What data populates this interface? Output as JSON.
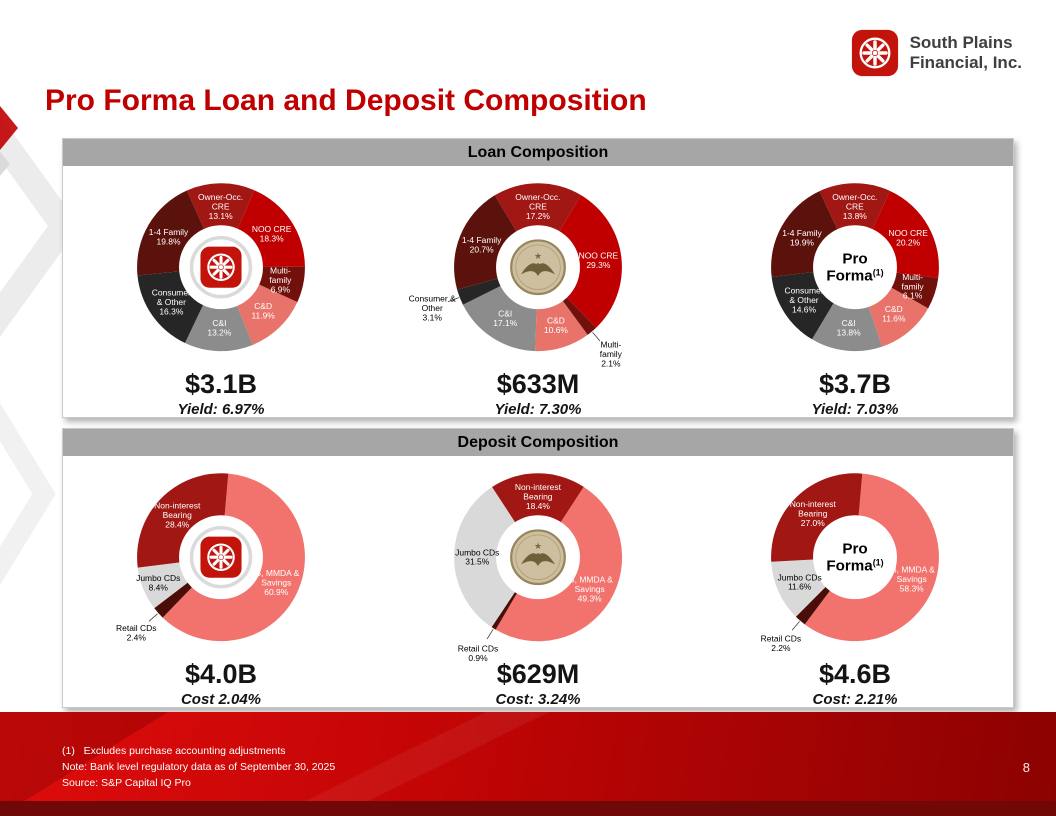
{
  "brand": {
    "name_line1": "South Plains",
    "name_line2": "Financial, Inc.",
    "accent_red": "#C00000",
    "logo_red": "#C3140C"
  },
  "title": "Pro Forma Loan and Deposit Composition",
  "sections": [
    {
      "header": "Loan Composition"
    },
    {
      "header": "Deposit Composition"
    }
  ],
  "footer": {
    "footnote": "(1)   Excludes purchase accounting adjustments",
    "note": "Note: Bank level regulatory data as of September 30, 2025",
    "source": "Source: S&P Capital IQ Pro",
    "page_number": "8"
  },
  "chart_data": [
    {
      "id": "loan-south-plains",
      "type": "pie",
      "section": "Loan Composition",
      "center": {
        "kind": "spfi-logo"
      },
      "total": "$3.1B",
      "metric": "Yield: 6.97%",
      "start_deg": -24,
      "segments": [
        {
          "name": "Owner-Occ. CRE",
          "value": 13.1,
          "color": "#A01713",
          "text": "#ffffff",
          "lines": [
            "Owner-Occ.",
            "CRE",
            "13.1%"
          ],
          "placement": "in"
        },
        {
          "name": "NOO CRE",
          "value": 18.3,
          "color": "#C00000",
          "text": "#ffffff",
          "lines": [
            "NOO CRE",
            "18.3%"
          ],
          "placement": "in"
        },
        {
          "name": "Multi-family",
          "value": 6.9,
          "color": "#72110C",
          "text": "#ffffff",
          "lines": [
            "Multi-",
            "family",
            "6.9%"
          ],
          "placement": "in"
        },
        {
          "name": "C&D",
          "value": 11.9,
          "color": "#E8736B",
          "text": "#ffffff",
          "lines": [
            "C&D",
            "11.9%"
          ],
          "placement": "in"
        },
        {
          "name": "C&I",
          "value": 13.2,
          "color": "#8C8C8C",
          "text": "#ffffff",
          "lines": [
            "C&I",
            "13.2%"
          ],
          "placement": "in"
        },
        {
          "name": "Consumer & Other",
          "value": 16.3,
          "color": "#262626",
          "text": "#ffffff",
          "lines": [
            "Consumer",
            "& Other",
            "16.3%"
          ],
          "placement": "in"
        },
        {
          "name": "1-4 Family",
          "value": 19.8,
          "color": "#5C120C",
          "text": "#ffffff",
          "lines": [
            "1-4 Family",
            "19.8%"
          ],
          "placement": "in"
        }
      ]
    },
    {
      "id": "loan-city-bank",
      "type": "pie",
      "section": "Loan Composition",
      "center": {
        "kind": "eagle-logo"
      },
      "total": "$633M",
      "metric": "Yield: 7.30%",
      "start_deg": -31,
      "segments": [
        {
          "name": "Owner-Occ. CRE",
          "value": 17.2,
          "color": "#A01713",
          "text": "#ffffff",
          "lines": [
            "Owner-Occ.",
            "CRE",
            "17.2%"
          ],
          "placement": "in"
        },
        {
          "name": "NOO CRE",
          "value": 29.3,
          "color": "#C00000",
          "text": "#ffffff",
          "lines": [
            "NOO CRE",
            "29.3%"
          ],
          "placement": "in"
        },
        {
          "name": "Multi-family",
          "value": 2.1,
          "color": "#72110C",
          "text": "#000000",
          "lines": [
            "Multi-",
            "family",
            "2.1%"
          ],
          "placement": "out"
        },
        {
          "name": "C&D",
          "value": 10.6,
          "color": "#E8736B",
          "text": "#ffffff",
          "lines": [
            "C&D",
            "10.6%"
          ],
          "placement": "in"
        },
        {
          "name": "C&I",
          "value": 17.1,
          "color": "#8C8C8C",
          "text": "#ffffff",
          "lines": [
            "C&I",
            "17.1%"
          ],
          "placement": "in"
        },
        {
          "name": "Consumer & Other",
          "value": 3.1,
          "color": "#262626",
          "text": "#000000",
          "lines": [
            "Consumer &",
            "Other",
            "3.1%"
          ],
          "placement": "out"
        },
        {
          "name": "1-4 Family",
          "value": 20.7,
          "color": "#5C120C",
          "text": "#ffffff",
          "lines": [
            "1-4 Family",
            "20.7%"
          ],
          "placement": "in"
        }
      ]
    },
    {
      "id": "loan-pro-forma",
      "type": "pie",
      "section": "Loan Composition",
      "center": {
        "kind": "text",
        "lines": [
          "Pro",
          "Forma"
        ],
        "sup": "(1)"
      },
      "total": "$3.7B",
      "metric": "Yield: 7.03%",
      "start_deg": -25,
      "segments": [
        {
          "name": "Owner-Occ. CRE",
          "value": 13.8,
          "color": "#A01713",
          "text": "#ffffff",
          "lines": [
            "Owner-Occ.",
            "CRE",
            "13.8%"
          ],
          "placement": "in"
        },
        {
          "name": "NOO CRE",
          "value": 20.2,
          "color": "#C00000",
          "text": "#ffffff",
          "lines": [
            "NOO CRE",
            "20.2%"
          ],
          "placement": "in"
        },
        {
          "name": "Multi-family",
          "value": 6.1,
          "color": "#72110C",
          "text": "#ffffff",
          "lines": [
            "Multi-",
            "family",
            "6.1%"
          ],
          "placement": "in"
        },
        {
          "name": "C&D",
          "value": 11.6,
          "color": "#E8736B",
          "text": "#ffffff",
          "lines": [
            "C&D",
            "11.6%"
          ],
          "placement": "in"
        },
        {
          "name": "C&I",
          "value": 13.8,
          "color": "#8C8C8C",
          "text": "#ffffff",
          "lines": [
            "C&I",
            "13.8%"
          ],
          "placement": "in"
        },
        {
          "name": "Consumer & Other",
          "value": 14.6,
          "color": "#262626",
          "text": "#ffffff",
          "lines": [
            "Consumer",
            "& Other",
            "14.6%"
          ],
          "placement": "in"
        },
        {
          "name": "1-4 Family",
          "value": 19.9,
          "color": "#5C120C",
          "text": "#ffffff",
          "lines": [
            "1-4 Family",
            "19.9%"
          ],
          "placement": "in"
        }
      ]
    },
    {
      "id": "deposit-south-plains",
      "type": "pie",
      "section": "Deposit Composition",
      "center": {
        "kind": "spfi-logo"
      },
      "total": "$4.0B",
      "metric": "Cost 2.04%",
      "start_deg": 5,
      "segments": [
        {
          "name": "IB, MMDA & Savings",
          "value": 60.9,
          "color": "#F2736D",
          "text": "#ffffff",
          "lines": [
            "IB, MMDA &",
            "Savings",
            "60.9%"
          ],
          "placement": "in"
        },
        {
          "name": "Retail CDs",
          "value": 2.4,
          "color": "#4A0D08",
          "text": "#000000",
          "lines": [
            "Retail CDs",
            "2.4%"
          ],
          "placement": "out"
        },
        {
          "name": "Jumbo CDs",
          "value": 8.4,
          "color": "#D9D9D9",
          "text": "#000000",
          "lines": [
            "Jumbo CDs",
            "8.4%"
          ],
          "placement": "in",
          "lr": 76
        },
        {
          "name": "Non-interest Bearing",
          "value": 28.4,
          "color": "#A01713",
          "text": "#ffffff",
          "lines": [
            "Non-interest",
            "Bearing",
            "28.4%"
          ],
          "placement": "in"
        }
      ]
    },
    {
      "id": "deposit-city-bank",
      "type": "pie",
      "section": "Deposit Composition",
      "center": {
        "kind": "eagle-logo"
      },
      "total": "$629M",
      "metric": "Cost: 3.24%",
      "start_deg": 33,
      "segments": [
        {
          "name": "IB, MMDA & Savings",
          "value": 49.3,
          "color": "#F2736D",
          "text": "#ffffff",
          "lines": [
            "IB, MMDA &",
            "Savings",
            "49.3%"
          ],
          "placement": "in"
        },
        {
          "name": "Retail CDs",
          "value": 0.9,
          "color": "#4A0D08",
          "text": "#000000",
          "lines": [
            "Retail CDs",
            "0.9%"
          ],
          "placement": "out"
        },
        {
          "name": "Jumbo CDs",
          "value": 31.5,
          "color": "#D9D9D9",
          "text": "#000000",
          "lines": [
            "Jumbo CDs",
            "31.5%"
          ],
          "placement": "in"
        },
        {
          "name": "Non-interest Bearing",
          "value": 18.4,
          "color": "#A01713",
          "text": "#ffffff",
          "lines": [
            "Non-interest",
            "Bearing",
            "18.4%"
          ],
          "placement": "in"
        }
      ]
    },
    {
      "id": "deposit-pro-forma",
      "type": "pie",
      "section": "Deposit Composition",
      "center": {
        "kind": "text",
        "lines": [
          "Pro",
          "Forma"
        ],
        "sup": "(1)"
      },
      "total": "$4.6B",
      "metric": "Cost: 2.21%",
      "start_deg": 5,
      "segments": [
        {
          "name": "IB, MMDA & Savings",
          "value": 58.3,
          "color": "#F2736D",
          "text": "#ffffff",
          "lines": [
            "IB, MMDA &",
            "Savings",
            "58.3%"
          ],
          "placement": "in"
        },
        {
          "name": "Retail CDs",
          "value": 2.2,
          "color": "#4A0D08",
          "text": "#000000",
          "lines": [
            "Retail CDs",
            "2.2%"
          ],
          "placement": "out"
        },
        {
          "name": "Jumbo CDs",
          "value": 11.6,
          "color": "#D9D9D9",
          "text": "#000000",
          "lines": [
            "Jumbo CDs",
            "11.6%"
          ],
          "placement": "in"
        },
        {
          "name": "Non-interest Bearing",
          "value": 27.0,
          "color": "#A01713",
          "text": "#ffffff",
          "lines": [
            "Non-interest",
            "Bearing",
            "27.0%"
          ],
          "placement": "in"
        }
      ]
    }
  ]
}
